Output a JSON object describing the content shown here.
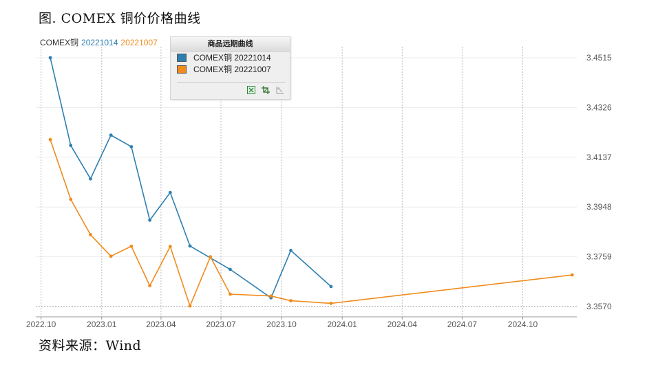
{
  "page_title": "图. COMEX 铜价价格曲线",
  "source_text": "资料来源：Wind",
  "legend_inline": [
    {
      "label": "COMEX铜",
      "color": "#333333"
    },
    {
      "label": "20221014",
      "color": "#2e7fb0"
    },
    {
      "label": "20221007",
      "color": "#f08b1c"
    }
  ],
  "legend_panel": {
    "title": "商品远期曲线",
    "items": [
      {
        "label": "COMEX铜 20221014",
        "color": "#2e7fb0"
      },
      {
        "label": "COMEX铜 20221007",
        "color": "#f08b1c"
      }
    ],
    "tools": [
      "excel-export-icon",
      "crop-icon",
      "chart-select-icon"
    ]
  },
  "chart_data": {
    "type": "line",
    "x_tick_labels": [
      "2022.10",
      "2023.01",
      "2023.04",
      "2023.07",
      "2023.10",
      "2024.01",
      "2024.04",
      "2024.07",
      "2024.10"
    ],
    "y_tick_labels": [
      "3.4515",
      "3.4326",
      "3.4137",
      "3.3948",
      "3.3759",
      "3.3570"
    ],
    "ylim": [
      3.357,
      3.4515
    ],
    "xlim": [
      "2022-09-23",
      "2024-12-22"
    ],
    "y_axis_position": "right",
    "grid": "dotted vertical at ticks, light horizontal",
    "series": [
      {
        "name": "COMEX铜 20221014",
        "color": "#2e7fb0",
        "points": [
          [
            "2022-10",
            3.4515
          ],
          [
            "2022-11",
            3.4182
          ],
          [
            "2022-12",
            3.4055
          ],
          [
            "2023-01",
            3.4221
          ],
          [
            "2023-02",
            3.4177
          ],
          [
            "2023-03",
            3.3898
          ],
          [
            "2023-04",
            3.4003
          ],
          [
            "2023-05",
            3.38
          ],
          [
            "2023-07",
            3.3711
          ],
          [
            "2023-09",
            3.3603
          ],
          [
            "2023-10",
            3.3783
          ],
          [
            "2023-12",
            3.3646
          ]
        ]
      },
      {
        "name": "COMEX铜 20221007",
        "color": "#f08b1c",
        "points": [
          [
            "2022-10",
            3.4204
          ],
          [
            "2022-11",
            3.3977
          ],
          [
            "2022-12",
            3.3843
          ],
          [
            "2023-01",
            3.3761
          ],
          [
            "2023-02",
            3.3799
          ],
          [
            "2023-03",
            3.3649
          ],
          [
            "2023-04",
            3.3798
          ],
          [
            "2023-05",
            3.3572
          ],
          [
            "2023-06",
            3.3759
          ],
          [
            "2023-07",
            3.3617
          ],
          [
            "2023-09",
            3.361
          ],
          [
            "2023-10",
            3.3592
          ],
          [
            "2023-12",
            3.3582
          ],
          [
            "2024-12",
            3.369
          ]
        ]
      }
    ]
  }
}
